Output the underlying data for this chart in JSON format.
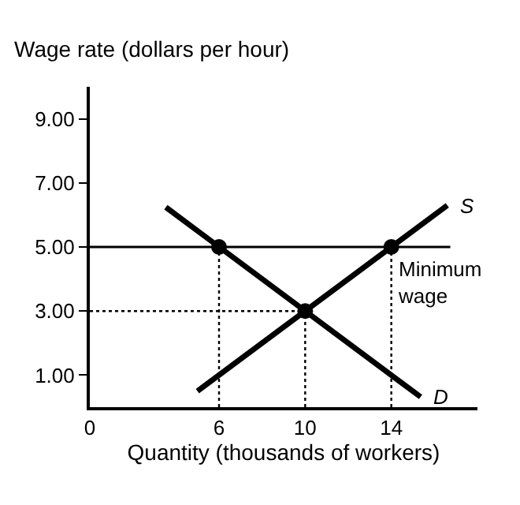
{
  "chart_data": {
    "type": "line",
    "xlabel": "Quantity (thousands of workers)",
    "ylabel": "Wage rate (dollars per hour)",
    "xlim": [
      0,
      18
    ],
    "ylim": [
      0,
      10
    ],
    "xticks": [
      0,
      6,
      10,
      14
    ],
    "yticks": [
      {
        "value": 1,
        "label": "1.00"
      },
      {
        "value": 3,
        "label": "3.00"
      },
      {
        "value": 5,
        "label": "5.00"
      },
      {
        "value": 7,
        "label": "7.00"
      },
      {
        "value": 9,
        "label": "9.00"
      }
    ],
    "series": [
      {
        "name": "D",
        "color": "#000000",
        "x": [
          3.53,
          15.36
        ],
        "values": [
          6.24,
          0.32
        ]
      },
      {
        "name": "S",
        "color": "#000000",
        "x": [
          5,
          16.6
        ],
        "values": [
          0.5,
          6.3
        ]
      },
      {
        "type": "line",
        "line_style": "dotted",
        "color": "#000000",
        "x": [
          6,
          6
        ],
        "values": [
          0,
          5
        ]
      },
      {
        "type": "line",
        "line_style": "dotted",
        "color": "#000000",
        "x": [
          10,
          10
        ],
        "values": [
          0,
          3
        ]
      },
      {
        "type": "line",
        "line_style": "dotted",
        "color": "#000000",
        "x": [
          14,
          14
        ],
        "values": [
          0,
          5
        ]
      },
      {
        "type": "line",
        "line_style": "dotted",
        "color": "#000000",
        "x": [
          0,
          10
        ],
        "values": [
          3,
          3
        ]
      },
      {
        "type": "scatter",
        "marker": "circle",
        "color": "#000000",
        "x": [
          6,
          10,
          14
        ],
        "values": [
          5,
          3,
          5
        ]
      }
    ],
    "ref_lines": [
      {
        "axis": "y",
        "value": 5,
        "label": "Minimum wage",
        "color": "#000000"
      }
    ],
    "grid": false,
    "marker": "none",
    "line_style": "solid"
  }
}
